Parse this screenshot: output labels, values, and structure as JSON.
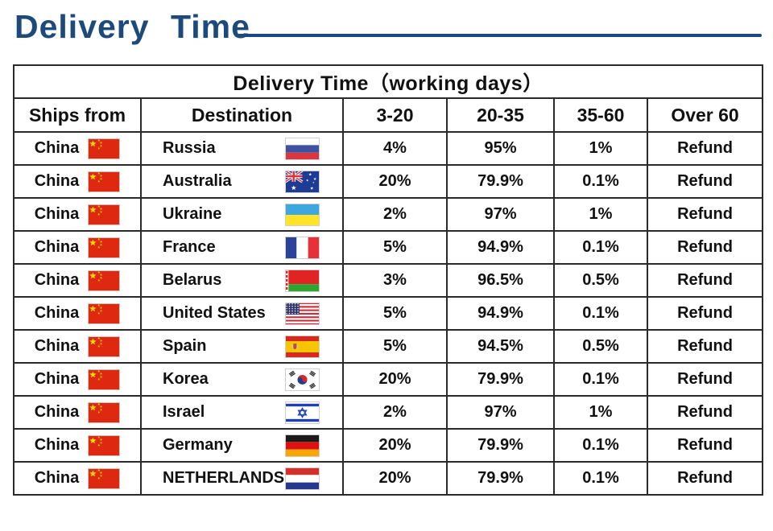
{
  "page": {
    "title": "Delivery Time"
  },
  "colors": {
    "accent": "#1d4a7d",
    "table_border": "#2a2a2a",
    "text": "#111111"
  },
  "table": {
    "caption": "Delivery Time（working days）",
    "columns": [
      "Ships from",
      "Destination",
      "3-20",
      "20-35",
      "35-60",
      "Over 60"
    ],
    "rows": [
      {
        "ships_from": "China",
        "ships_from_flag": "china",
        "destination": "Russia",
        "destination_flag": "russia",
        "p3_20": "4%",
        "p20_35": "95%",
        "p35_60": "1%",
        "over_60": "Refund"
      },
      {
        "ships_from": "China",
        "ships_from_flag": "china",
        "destination": "Australia",
        "destination_flag": "australia",
        "p3_20": "20%",
        "p20_35": "79.9%",
        "p35_60": "0.1%",
        "over_60": "Refund"
      },
      {
        "ships_from": "China",
        "ships_from_flag": "china",
        "destination": "Ukraine",
        "destination_flag": "ukraine",
        "p3_20": "2%",
        "p20_35": "97%",
        "p35_60": "1%",
        "over_60": "Refund"
      },
      {
        "ships_from": "China",
        "ships_from_flag": "china",
        "destination": "France",
        "destination_flag": "france",
        "p3_20": "5%",
        "p20_35": "94.9%",
        "p35_60": "0.1%",
        "over_60": "Refund"
      },
      {
        "ships_from": "China",
        "ships_from_flag": "china",
        "destination": "Belarus",
        "destination_flag": "belarus",
        "p3_20": "3%",
        "p20_35": "96.5%",
        "p35_60": "0.5%",
        "over_60": "Refund"
      },
      {
        "ships_from": "China",
        "ships_from_flag": "china",
        "destination": "United States",
        "destination_flag": "usa",
        "p3_20": "5%",
        "p20_35": "94.9%",
        "p35_60": "0.1%",
        "over_60": "Refund"
      },
      {
        "ships_from": "China",
        "ships_from_flag": "china",
        "destination": "Spain",
        "destination_flag": "spain",
        "p3_20": "5%",
        "p20_35": "94.5%",
        "p35_60": "0.5%",
        "over_60": "Refund"
      },
      {
        "ships_from": "China",
        "ships_from_flag": "china",
        "destination": "Korea",
        "destination_flag": "south-korea",
        "p3_20": "20%",
        "p20_35": "79.9%",
        "p35_60": "0.1%",
        "over_60": "Refund"
      },
      {
        "ships_from": "China",
        "ships_from_flag": "china",
        "destination": "Israel",
        "destination_flag": "israel",
        "p3_20": "2%",
        "p20_35": "97%",
        "p35_60": "1%",
        "over_60": "Refund"
      },
      {
        "ships_from": "China",
        "ships_from_flag": "china",
        "destination": "Germany",
        "destination_flag": "germany",
        "p3_20": "20%",
        "p20_35": "79.9%",
        "p35_60": "0.1%",
        "over_60": "Refund"
      },
      {
        "ships_from": "China",
        "ships_from_flag": "china",
        "destination": "NETHERLANDS",
        "destination_flag": "netherlands",
        "p3_20": "20%",
        "p20_35": "79.9%",
        "p35_60": "0.1%",
        "over_60": "Refund"
      }
    ]
  }
}
